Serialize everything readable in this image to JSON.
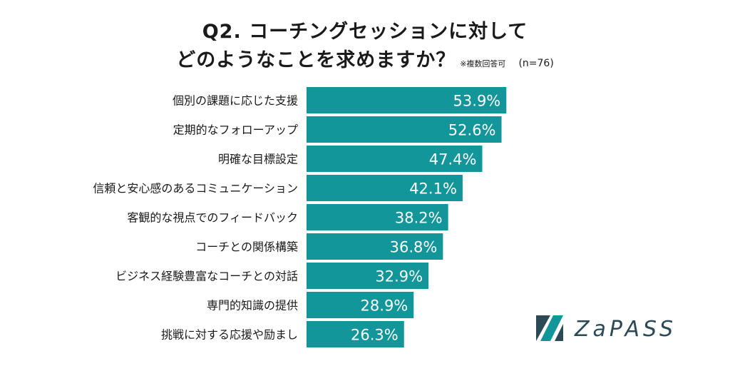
{
  "title": {
    "line1": "Q2. コーチングセッションに対して",
    "line2": "どのようなことを求めますか？",
    "note": "※複数回答可",
    "n": "(n=76)"
  },
  "logo": {
    "text": "ZaPASS"
  },
  "colors": {
    "bar": "#12969a",
    "label": "#1a1a1a",
    "value": "#ffffff",
    "logo": "#2b4a56"
  },
  "chart_data": {
    "type": "bar",
    "orientation": "horizontal",
    "unit": "%",
    "categories": [
      "個別の課題に応じた支援",
      "定期的なフォローアップ",
      "明確な目標設定",
      "信頼と安心感のあるコミュニケーション",
      "客観的な視点でのフィードバック",
      "コーチとの関係構築",
      "ビジネス経験豊富なコーチとの対話",
      "専門的知識の提供",
      "挑戦に対する応援や励まし"
    ],
    "values": [
      53.9,
      52.6,
      47.4,
      42.1,
      38.2,
      36.8,
      32.9,
      28.9,
      26.3
    ],
    "value_labels": [
      "53.9%",
      "52.6%",
      "47.4%",
      "42.1%",
      "38.2%",
      "36.8%",
      "32.9%",
      "28.9%",
      "26.3%"
    ],
    "xlim": [
      0,
      100
    ]
  }
}
